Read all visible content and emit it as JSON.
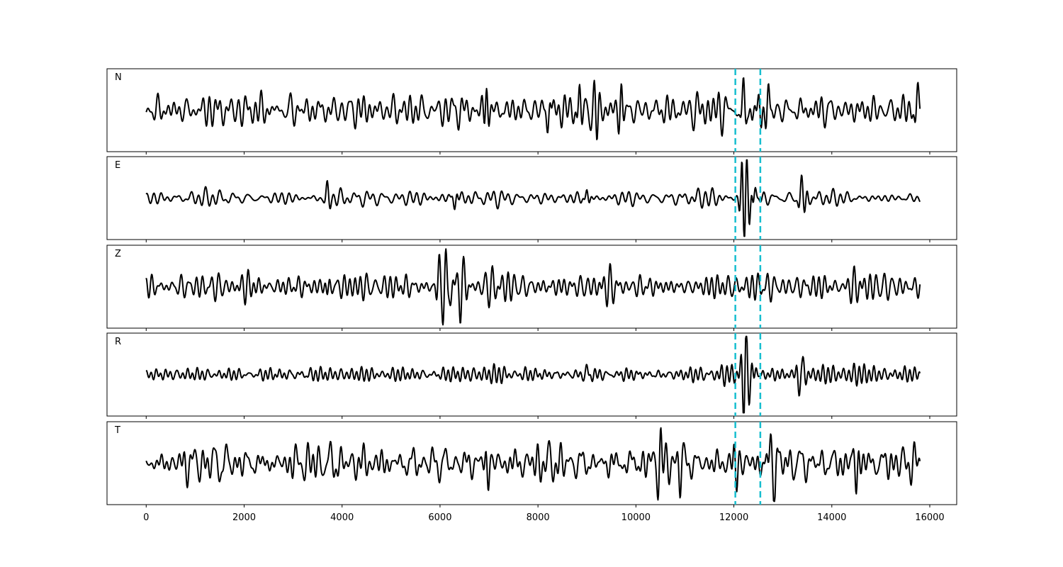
{
  "chart_data": {
    "type": "line",
    "xlim": [
      -800,
      16550
    ],
    "ylim": [
      -1,
      1
    ],
    "grid": false,
    "x_ticks": [
      0,
      2000,
      4000,
      6000,
      8000,
      10000,
      12000,
      14000,
      16000
    ],
    "x_tick_labels": [
      "0",
      "2000",
      "4000",
      "6000",
      "8000",
      "10000",
      "12000",
      "14000",
      "16000"
    ],
    "n_samples": 15800,
    "picks": [
      12030,
      12540
    ],
    "colors": {
      "trace": "#000000",
      "pick": "#17becf"
    },
    "series": [
      {
        "name": "N",
        "base_amplitude": 0.3,
        "events": [
          {
            "x": 6950,
            "y": 0.85
          },
          {
            "x": 8200,
            "y": -0.6
          },
          {
            "x": 8850,
            "y": 0.65
          },
          {
            "x": 9200,
            "y": -0.62
          },
          {
            "x": 9700,
            "y": 0.6
          },
          {
            "x": 12200,
            "y": 0.62
          },
          {
            "x": 12300,
            "y": -0.42
          },
          {
            "x": 12550,
            "y": -0.55
          },
          {
            "x": 12700,
            "y": 0.72
          },
          {
            "x": 15750,
            "y": 0.6
          }
        ]
      },
      {
        "name": "E",
        "base_amplitude": 0.12,
        "events": [
          {
            "x": 3700,
            "y": 0.28
          },
          {
            "x": 6300,
            "y": -0.3
          },
          {
            "x": 9000,
            "y": 0.26
          },
          {
            "x": 12170,
            "y": 0.62
          },
          {
            "x": 12210,
            "y": -0.72
          },
          {
            "x": 12260,
            "y": 0.58
          },
          {
            "x": 12320,
            "y": -0.5
          },
          {
            "x": 12430,
            "y": 0.3
          },
          {
            "x": 13380,
            "y": 0.45
          },
          {
            "x": 13450,
            "y": -0.3
          }
        ]
      },
      {
        "name": "Z",
        "base_amplitude": 0.22,
        "events": [
          {
            "x": 5980,
            "y": 0.78
          },
          {
            "x": 6060,
            "y": -0.55
          },
          {
            "x": 6120,
            "y": 0.55
          },
          {
            "x": 6220,
            "y": -0.45
          },
          {
            "x": 6420,
            "y": -0.65
          },
          {
            "x": 6500,
            "y": 0.48
          },
          {
            "x": 3700,
            "y": -0.3
          }
        ]
      },
      {
        "name": "R",
        "base_amplitude": 0.12,
        "events": [
          {
            "x": 9000,
            "y": 0.24
          },
          {
            "x": 12200,
            "y": -0.72
          },
          {
            "x": 12250,
            "y": 0.74
          },
          {
            "x": 12320,
            "y": -0.42
          },
          {
            "x": 12450,
            "y": 0.3
          },
          {
            "x": 13330,
            "y": -0.45
          },
          {
            "x": 13420,
            "y": 0.3
          }
        ]
      },
      {
        "name": "T",
        "base_amplitude": 0.38,
        "events": [
          {
            "x": 6980,
            "y": -0.74
          },
          {
            "x": 10500,
            "y": 0.68
          },
          {
            "x": 10900,
            "y": -0.66
          },
          {
            "x": 12050,
            "y": -0.6
          },
          {
            "x": 12750,
            "y": 0.7
          },
          {
            "x": 12830,
            "y": -0.68
          },
          {
            "x": 14500,
            "y": -0.6
          }
        ]
      }
    ]
  }
}
